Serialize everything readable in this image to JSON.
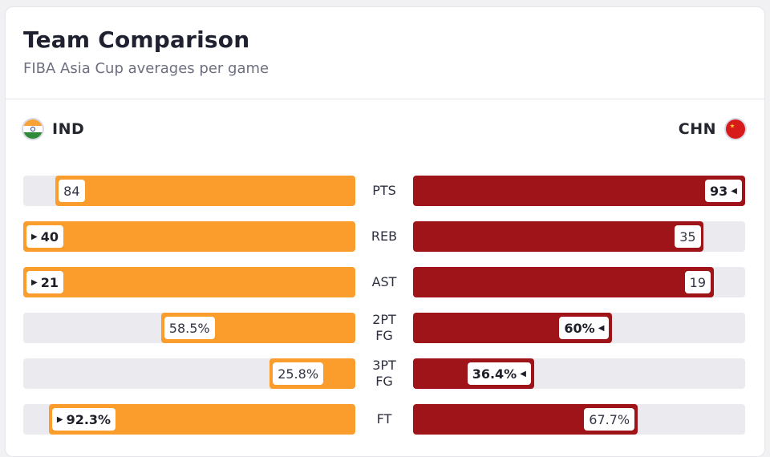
{
  "header": {
    "title": "Team Comparison",
    "subtitle": "FIBA Asia Cup averages per game"
  },
  "teams": {
    "left": {
      "code": "IND",
      "flag_icon": "india-flag-icon"
    },
    "right": {
      "code": "CHN",
      "flag_icon": "china-flag-icon"
    }
  },
  "colors": {
    "left_fill": "#fb9d2d",
    "right_fill": "#9e1419",
    "track": "#ebebef"
  },
  "stats": [
    {
      "label": "PTS",
      "left": "84",
      "right": "93",
      "left_frac": 0.903,
      "right_frac": 1.0,
      "leader": "right"
    },
    {
      "label": "REB",
      "left": "40",
      "right": "35",
      "left_frac": 1.0,
      "right_frac": 0.875,
      "leader": "left"
    },
    {
      "label": "AST",
      "left": "21",
      "right": "19",
      "left_frac": 1.0,
      "right_frac": 0.905,
      "leader": "left"
    },
    {
      "label": "2PT\nFG",
      "left": "58.5%",
      "right": "60%",
      "left_frac": 0.585,
      "right_frac": 0.6,
      "leader": "right"
    },
    {
      "label": "3PT\nFG",
      "left": "25.8%",
      "right": "36.4%",
      "left_frac": 0.258,
      "right_frac": 0.364,
      "leader": "right"
    },
    {
      "label": "FT",
      "left": "92.3%",
      "right": "67.7%",
      "left_frac": 0.923,
      "right_frac": 0.677,
      "leader": "left"
    }
  ]
}
